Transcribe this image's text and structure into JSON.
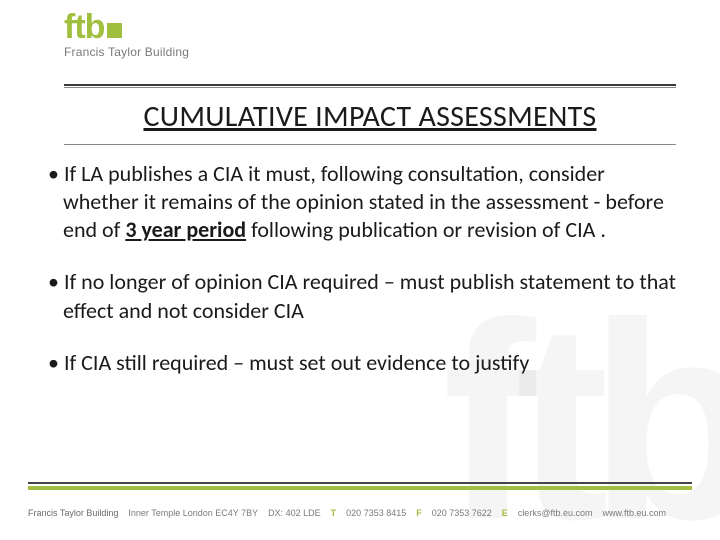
{
  "brand": {
    "logo_text": "ftb",
    "accent_color": "#a0bf3e",
    "sub": "Francis Taylor Building"
  },
  "title": "CUMULATIVE IMPACT ASSESSMENTS",
  "bullets": {
    "b1_pre": "If LA publishes a CIA it must, following consultation, consider whether it remains of the opinion stated in the assessment - before end of ",
    "b1_emph": "3 year period",
    "b1_post": " following publication or revision of CIA .",
    "b2": "If no longer of opinion CIA required – must publish statement to that effect and not consider CIA",
    "b3": "If CIA still required – must set out evidence to justify"
  },
  "footer": {
    "org": "Francis Taylor Building",
    "addr": "Inner Temple London EC4Y 7BY",
    "dx": "DX: 402 LDE",
    "t_label": "T",
    "t": "020 7353 8415",
    "f_label": "F",
    "f": "020 7353 7622",
    "e_label": "E",
    "e": "clerks@ftb.eu.com",
    "web": "www.ftb.eu.com"
  }
}
